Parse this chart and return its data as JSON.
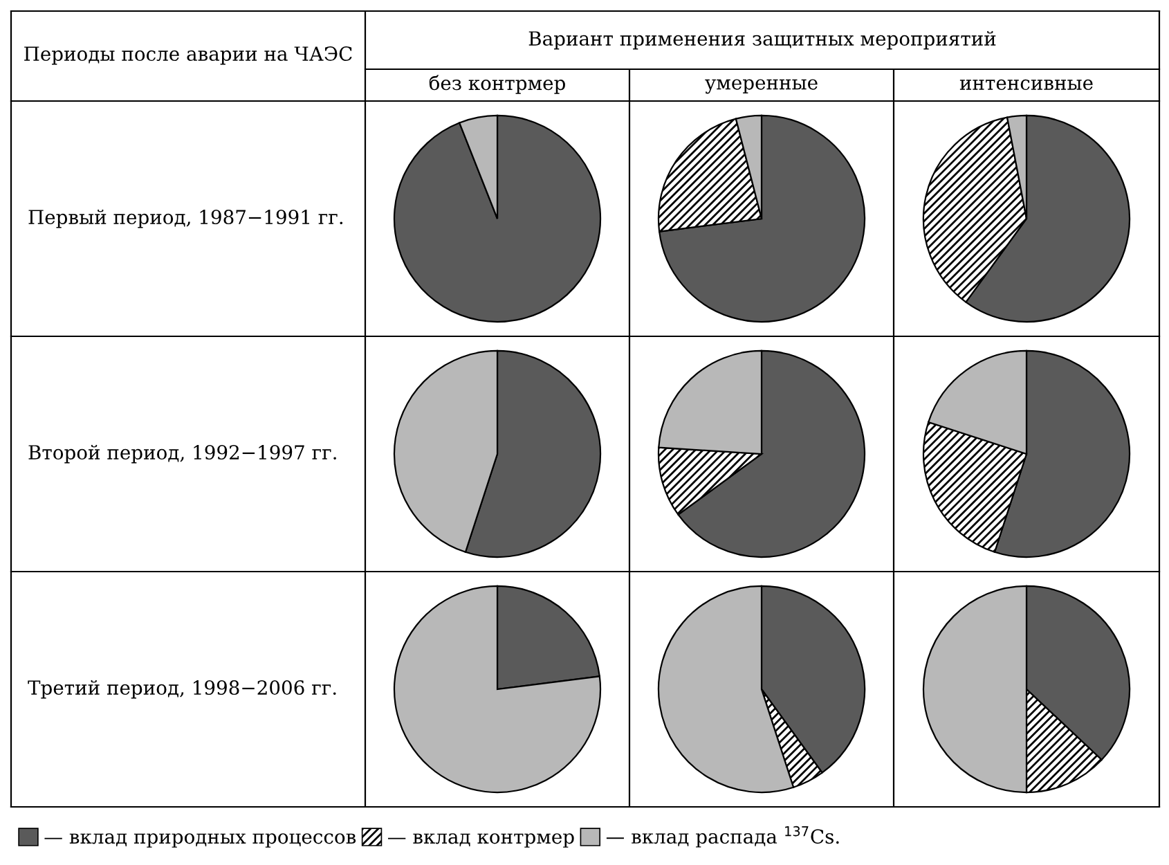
{
  "chart_data": [
    {
      "type": "other",
      "title": "Вариант применения защитных мероприятий",
      "annotations": [
        "Периоды после аварии на ЧАЭС",
        "без контрмер",
        "умеренные",
        "интенсивные",
        "Первый период, 1987−1991 гг.",
        "Второй период, 1992−1997 гг.",
        "Третий период, 1998−2006 гг."
      ]
    },
    {
      "type": "pie",
      "legend": "bottom",
      "categories": [
        "— вклад природных процессов",
        "— вклад контрмер",
        "— вклад распада $^{137}$Cs."
      ],
      "values": [
        94,
        0,
        6
      ],
      "colors": [
        "#5a5a5a",
        "#ffffff",
        "#b8b8b8"
      ]
    },
    {
      "type": "pie",
      "values": [
        73,
        23,
        4
      ],
      "colors": [
        "#5a5a5a",
        "#ffffff",
        "#b8b8b8"
      ]
    },
    {
      "type": "pie",
      "values": [
        60,
        37,
        3
      ],
      "colors": [
        "#5a5a5a",
        "#ffffff",
        "#b8b8b8"
      ]
    },
    {
      "type": "pie",
      "values": [
        55,
        0,
        45
      ],
      "colors": [
        "#5a5a5a",
        "#ffffff",
        "#b8b8b8"
      ]
    },
    {
      "type": "pie",
      "values": [
        65,
        11,
        24
      ],
      "colors": [
        "#5a5a5a",
        "#ffffff",
        "#b8b8b8"
      ]
    },
    {
      "type": "pie",
      "values": [
        55,
        25,
        20
      ],
      "colors": [
        "#5a5a5a",
        "#ffffff",
        "#b8b8b8"
      ]
    },
    {
      "type": "pie",
      "values": [
        23,
        0,
        77
      ],
      "colors": [
        "#5a5a5a",
        "#ffffff",
        "#b8b8b8"
      ]
    },
    {
      "type": "pie",
      "values": [
        40,
        5,
        55
      ],
      "colors": [
        "#5a5a5a",
        "#ffffff",
        "#b8b8b8"
      ]
    },
    {
      "type": "pie",
      "values": [
        37,
        13,
        50
      ],
      "colors": [
        "#5a5a5a",
        "#ffffff",
        "#b8b8b8"
      ]
    }
  ]
}
